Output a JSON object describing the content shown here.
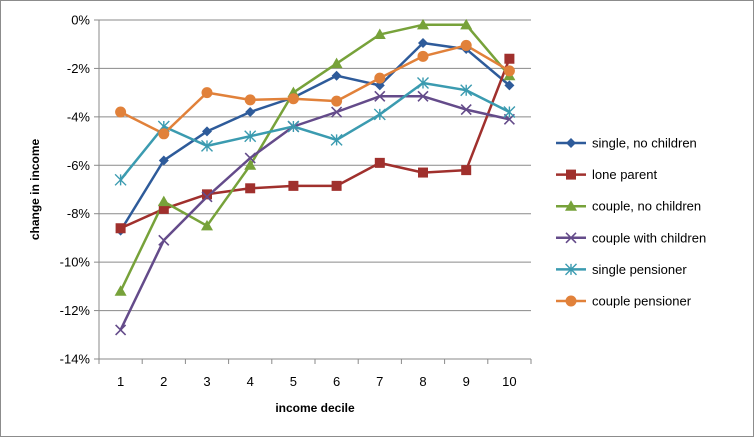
{
  "chart_data": {
    "type": "line",
    "title": "",
    "xlabel": "income decile",
    "ylabel": "change in income",
    "x": [
      1,
      2,
      3,
      4,
      5,
      6,
      7,
      8,
      9,
      10
    ],
    "x_tick_labels": [
      "1",
      "2",
      "3",
      "4",
      "5",
      "6",
      "7",
      "8",
      "9",
      "10"
    ],
    "ylim": [
      -14,
      0
    ],
    "y_ticks": [
      0,
      -2,
      -4,
      -6,
      -8,
      -10,
      -12,
      -14
    ],
    "y_tick_labels": [
      "0%",
      "-2%",
      "-4%",
      "-6%",
      "-8%",
      "-10%",
      "-12%",
      "-14%"
    ],
    "y_unit": "%",
    "grid": "horizontal",
    "legend_position": "right",
    "series": [
      {
        "name": "single, no children",
        "color": "#2e5b9a",
        "marker": "diamond",
        "values": [
          -8.7,
          -5.8,
          -4.6,
          -3.8,
          -3.2,
          -2.3,
          -2.7,
          -0.95,
          -1.2,
          -2.7
        ]
      },
      {
        "name": "lone parent",
        "color": "#a0302d",
        "marker": "square",
        "values": [
          -8.6,
          -7.8,
          -7.2,
          -6.95,
          -6.85,
          -6.85,
          -5.9,
          -6.3,
          -6.2,
          -1.6
        ]
      },
      {
        "name": "couple, no children",
        "color": "#77a23a",
        "marker": "triangle",
        "values": [
          -11.2,
          -7.5,
          -8.5,
          -6.0,
          -3.0,
          -1.8,
          -0.6,
          -0.2,
          -0.2,
          -2.3
        ]
      },
      {
        "name": "couple with children",
        "color": "#644b8a",
        "marker": "x",
        "values": [
          -12.8,
          -9.1,
          -7.3,
          -5.7,
          -4.4,
          -3.8,
          -3.15,
          -3.15,
          -3.7,
          -4.1
        ]
      },
      {
        "name": "single pensioner",
        "color": "#3b9bb0",
        "marker": "star",
        "values": [
          -6.6,
          -4.4,
          -5.2,
          -4.8,
          -4.4,
          -4.95,
          -3.9,
          -2.6,
          -2.9,
          -3.8
        ]
      },
      {
        "name": "couple pensioner",
        "color": "#e1813a",
        "marker": "circle",
        "values": [
          -3.8,
          -4.7,
          -3.0,
          -3.3,
          -3.25,
          -3.35,
          -2.4,
          -1.5,
          -1.05,
          -2.1
        ]
      }
    ]
  }
}
